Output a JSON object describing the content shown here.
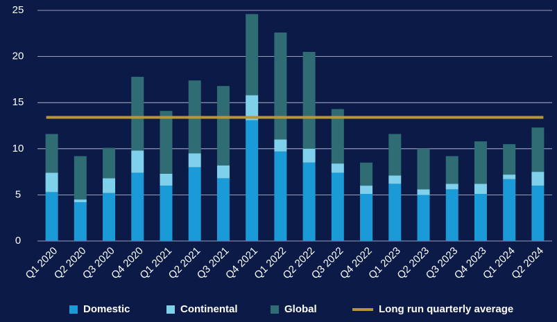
{
  "chart_data": {
    "type": "stacked_bar",
    "categories": [
      "Q1 2020",
      "Q2 2020",
      "Q3 2020",
      "Q4 2020",
      "Q1 2021",
      "Q2 2021",
      "Q3 2021",
      "Q4 2021",
      "Q1 2022",
      "Q2 2022",
      "Q3 2022",
      "Q4 2022",
      "Q1 2023",
      "Q2 2023",
      "Q3 2023",
      "Q4 2023",
      "Q1 2024",
      "Q2 2024"
    ],
    "series": [
      {
        "name": "Domestic",
        "color": "#1a9ad6",
        "values": [
          5.3,
          4.2,
          5.2,
          7.4,
          6.0,
          8.0,
          6.8,
          13.1,
          9.7,
          8.5,
          7.4,
          5.1,
          6.2,
          5.0,
          5.6,
          5.1,
          6.7,
          6.0
        ]
      },
      {
        "name": "Continental",
        "color": "#7fd0ea",
        "values": [
          2.1,
          0.3,
          1.6,
          2.4,
          1.3,
          1.5,
          1.4,
          2.7,
          1.3,
          1.5,
          1.0,
          0.9,
          0.9,
          0.6,
          0.6,
          1.1,
          0.5,
          1.5
        ]
      },
      {
        "name": "Global",
        "color": "#2f6c74",
        "values": [
          4.2,
          4.7,
          3.3,
          8.0,
          6.8,
          7.9,
          8.6,
          8.8,
          11.6,
          10.5,
          5.9,
          2.5,
          4.5,
          4.4,
          3.0,
          4.6,
          3.3,
          4.8
        ]
      }
    ],
    "average": {
      "name": "Long run quarterly average",
      "value": 13.4,
      "color": "#b5973a"
    },
    "ylim": [
      0,
      25
    ],
    "yticks": [
      0,
      5,
      10,
      15,
      20,
      25
    ],
    "grid": true
  }
}
